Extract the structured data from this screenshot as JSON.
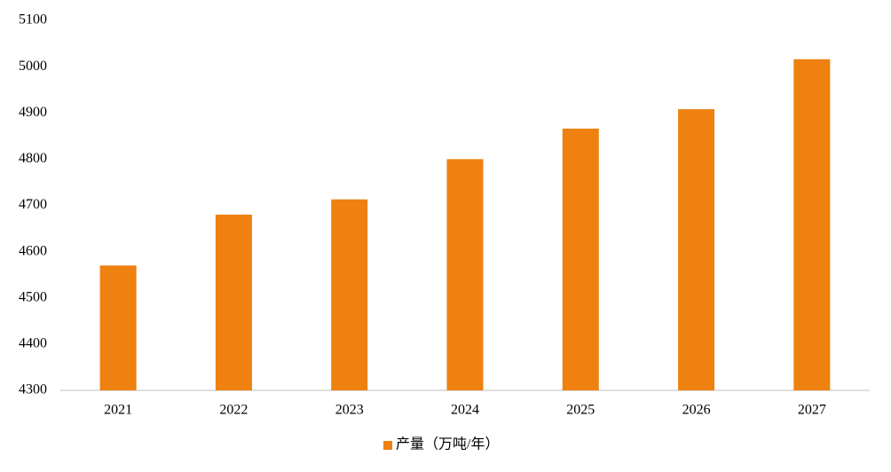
{
  "chart_data": {
    "type": "bar",
    "categories": [
      "2021",
      "2022",
      "2023",
      "2024",
      "2025",
      "2026",
      "2027"
    ],
    "series": [
      {
        "name": "产量（万吨/年）",
        "color": "#ee810f",
        "values": [
          4570,
          4680,
          4713,
          4800,
          4866,
          4908,
          5016
        ]
      }
    ],
    "ylim": [
      4300,
      5100
    ],
    "yticks": [
      4300,
      4400,
      4500,
      4600,
      4700,
      4800,
      4900,
      5000,
      5100
    ],
    "grid": false,
    "legend": "bottom"
  }
}
